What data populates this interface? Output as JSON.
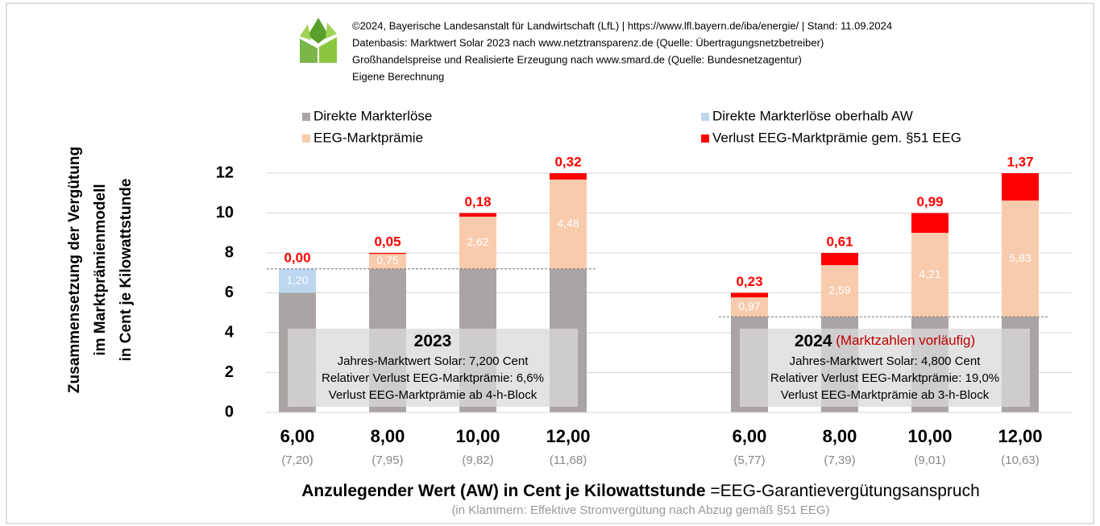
{
  "chart_data": {
    "type": "bar",
    "stacked": true,
    "header": [
      "©2024, Bayerische Landesanstalt für Landwirtschaft (LfL)  |  https://www.lfl.bayern.de/iba/energie/  |  Stand: 11.09.2024",
      "Datenbasis: Marktwert Solar 2023 nach www.netztransparenz.de (Quelle: Übertragungsnetzbetreiber)",
      "Großhandelspreise und Realisierte Erzeugung nach www.smard.de (Quelle: Bundesnetzagentur)",
      "Eigene Berechnung"
    ],
    "y_label": [
      "Zusammensetzung der Vergütung",
      "im Marktprämienmodell",
      "in Cent je Kilowattstunde"
    ],
    "x_label": "Anzulegender Wert (AW) in Cent je Kilowattstunde",
    "x_label_suffix": " =EEG-Garantievergütungsanspruch",
    "note": "(in Klammern: Effektive Stromvergütung nach Abzug gemäß §51 EEG)",
    "categories": [
      "6,00",
      "8,00",
      "10,00",
      "12,00",
      "6,00",
      "8,00",
      "10,00",
      "12,00"
    ],
    "sublabels": [
      "(7,20)",
      "(7,95)",
      "(9,82)",
      "(11,68)",
      "(5,77)",
      "(7,39)",
      "(9,01)",
      "(10,63)"
    ],
    "groups": [
      {
        "name": "2023",
        "market_value": 7.2,
        "lines": [
          "Jahres-Marktwert Solar: 7,200 Cent",
          "Relativer Verlust EEG-Marktprämie: 6,6%",
          "Verlust EEG-Marktprämie ab 4-h-Block"
        ]
      },
      {
        "name": "2024",
        "suffix": " (Marktzahlen vorläufig)",
        "market_value": 4.8,
        "lines": [
          "Jahres-Marktwert Solar: 4,800 Cent",
          "Relativer Verlust EEG-Marktprämie: 19,0%",
          "Verlust EEG-Marktprämie ab 3-h-Block"
        ]
      }
    ],
    "series": [
      {
        "name": "Direkte Markterlöse",
        "color": "#aaa5a4",
        "values": [
          6.0,
          7.2,
          7.2,
          7.2,
          4.8,
          4.8,
          4.8,
          4.8
        ]
      },
      {
        "name": "Direkte Markterlöse oberhalb AW",
        "color": "#bdd7ee",
        "values": [
          1.2,
          null,
          null,
          null,
          null,
          null,
          null,
          null
        ],
        "value_labels": [
          "1,20",
          null,
          null,
          null,
          null,
          null,
          null,
          null
        ]
      },
      {
        "name": "EEG-Marktprämie",
        "color": "#f8cbad",
        "values": [
          null,
          0.75,
          2.62,
          4.48,
          0.97,
          2.59,
          4.21,
          5.83
        ],
        "value_labels": [
          null,
          "0,75",
          "2,62",
          "4,48",
          "0,97",
          "2,59",
          "4,21",
          "5,83"
        ]
      },
      {
        "name": "Verlust EEG-Marktprämie gem. §51 EEG",
        "color": "#ff0000",
        "values": [
          0.0,
          0.05,
          0.18,
          0.32,
          0.23,
          0.61,
          0.99,
          1.37
        ],
        "value_labels": [
          "0,00",
          "0,05",
          "0,18",
          "0,32",
          "0,23",
          "0,61",
          "0,99",
          "1,37"
        ]
      }
    ],
    "ylim": [
      0,
      12
    ],
    "yticks": [
      0,
      2,
      4,
      6,
      8,
      10,
      12
    ],
    "grid": true
  }
}
